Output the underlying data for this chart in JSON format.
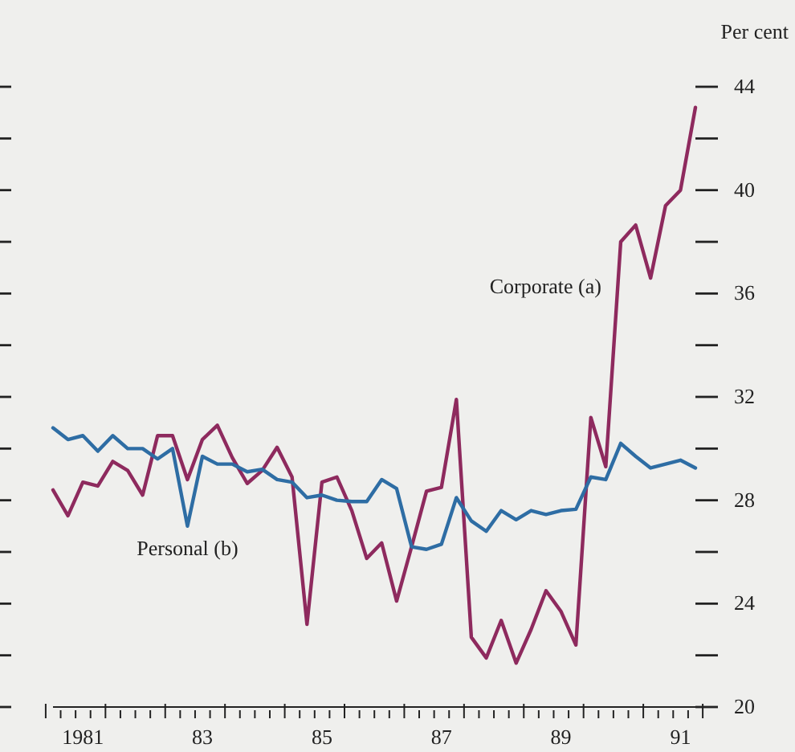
{
  "chart_data": {
    "type": "line",
    "ylabel": "Per cent",
    "categories": [
      null,
      null,
      "1981",
      null,
      null,
      null,
      null,
      null,
      null,
      null,
      "83",
      null,
      null,
      null,
      null,
      null,
      null,
      null,
      "85",
      null,
      null,
      null,
      null,
      null,
      null,
      null,
      "87",
      null,
      null,
      null,
      null,
      null,
      null,
      null,
      "89",
      null,
      null,
      null,
      null,
      null,
      null,
      null,
      "91",
      null
    ],
    "series": [
      {
        "name": "Corporate (a)",
        "color": "#8e2a5e",
        "values": [
          28.4,
          27.4,
          28.7,
          28.55,
          29.5,
          29.15,
          28.2,
          30.5,
          30.5,
          28.8,
          30.35,
          30.9,
          29.65,
          28.65,
          29.15,
          30.05,
          28.9,
          23.2,
          28.7,
          28.9,
          27.6,
          25.75,
          26.35,
          24.1,
          26.2,
          28.35,
          28.5,
          31.9,
          22.7,
          21.9,
          23.35,
          21.7,
          23.0,
          24.5,
          23.7,
          22.4,
          31.2,
          29.3,
          38.0,
          38.65,
          36.6,
          39.4,
          40.0,
          43.2
        ]
      },
      {
        "name": "Personal (b)",
        "color": "#2e6da4",
        "values": [
          30.8,
          30.35,
          30.5,
          29.9,
          30.5,
          30.0,
          30.0,
          29.6,
          30.0,
          27.0,
          29.7,
          29.4,
          29.4,
          29.1,
          29.2,
          28.8,
          28.7,
          28.1,
          28.2,
          28.0,
          27.95,
          27.95,
          28.8,
          28.45,
          26.2,
          26.1,
          26.3,
          28.1,
          27.2,
          26.8,
          27.6,
          27.25,
          27.6,
          27.45,
          27.6,
          27.65,
          28.9,
          28.8,
          30.2,
          29.7,
          29.25,
          29.4,
          29.55,
          29.25
        ]
      }
    ],
    "ylim": [
      20,
      44
    ],
    "yticks": [
      20,
      {
        "value": 22,
        "label": null
      },
      24,
      {
        "value": 26,
        "label": null
      },
      28,
      {
        "value": 30,
        "label": null
      },
      32,
      {
        "value": 34,
        "label": null
      },
      36,
      {
        "value": 38,
        "label": null
      },
      40,
      {
        "value": 42,
        "label": null
      },
      44
    ],
    "grid": false,
    "legend": false,
    "marker": "none",
    "line_style": "solid"
  }
}
